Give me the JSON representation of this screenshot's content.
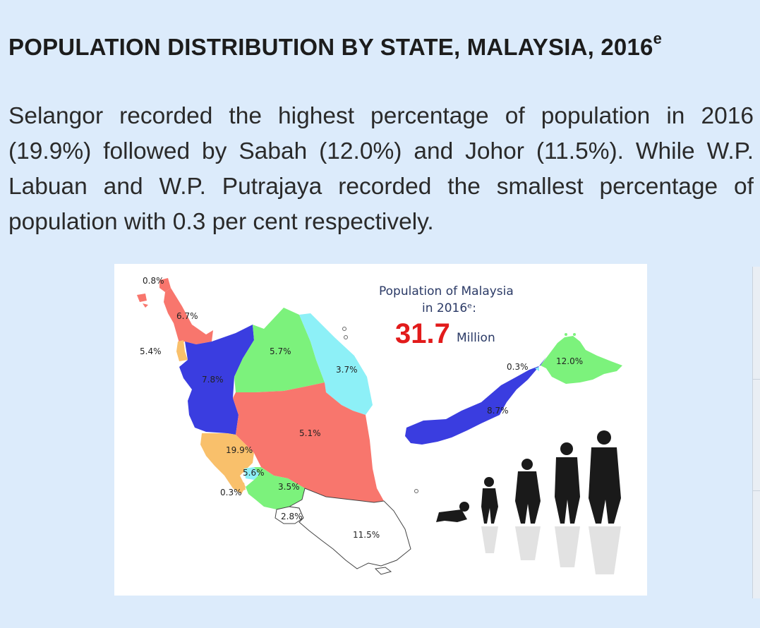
{
  "heading": {
    "title": "POPULATION DISTRIBUTION BY STATE, MALAYSIA, 2016",
    "superscript": "e"
  },
  "paragraph": "Selangor recorded the highest percentage of population in 2016 (19.9%) followed by Sabah (12.0%) and Johor (11.5%). While W.P. Labuan and W.P. Putrajaya recorded the smallest percentage of population with 0.3 per cent respectively.",
  "map": {
    "title_line1": "Population of Malaysia",
    "title_line2": "in 2016ᵉ:",
    "total_value": "31.7",
    "total_unit": "Million",
    "colors": {
      "red": "#f8766d",
      "blue": "#3a3de0",
      "green": "#7cf27c",
      "cyan": "#8df0f7",
      "orange": "#f9c06b",
      "white": "#ffffff",
      "silhouette": "#1a1a1a"
    },
    "labels": {
      "perlis": "0.8%",
      "kedah": "6.7%",
      "penang": "5.4%",
      "perak": "7.8%",
      "kelantan": "5.7%",
      "terengganu": "3.7%",
      "pahang": "5.1%",
      "selangor": "19.9%",
      "kuala_lumpur": "5.6%",
      "putrajaya": "0.3%",
      "negeri_sembilan": "3.5%",
      "melaka": "2.8%",
      "johor": "11.5%",
      "labuan": "0.3%",
      "sabah": "12.0%",
      "sarawak": "8.7%"
    }
  }
}
